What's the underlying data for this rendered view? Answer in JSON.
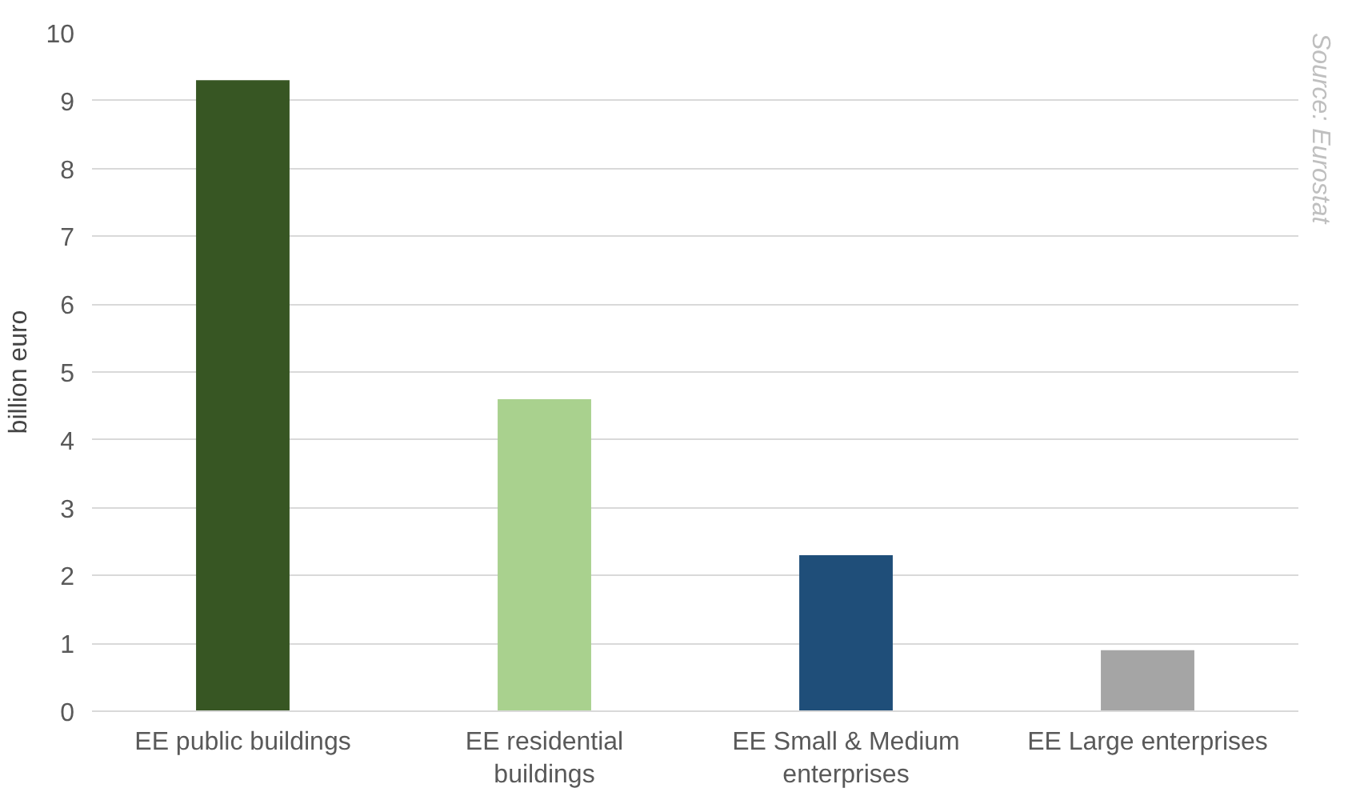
{
  "chart_data": {
    "type": "bar",
    "ylabel": "billion euro",
    "categories": [
      "EE public buildings",
      "EE residential buildings",
      "EE Small & Medium enterprises",
      "EE Large enterprises"
    ],
    "values": [
      9.3,
      4.6,
      2.3,
      0.9
    ],
    "colors": [
      "#375623",
      "#a9d18e",
      "#1f4e79",
      "#a5a5a5"
    ],
    "ylim": [
      0,
      10
    ],
    "yticks": [
      0,
      1,
      2,
      3,
      4,
      5,
      6,
      7,
      8,
      9,
      10
    ],
    "grid": "y",
    "annotations": [
      "Source: Eurostat"
    ]
  }
}
